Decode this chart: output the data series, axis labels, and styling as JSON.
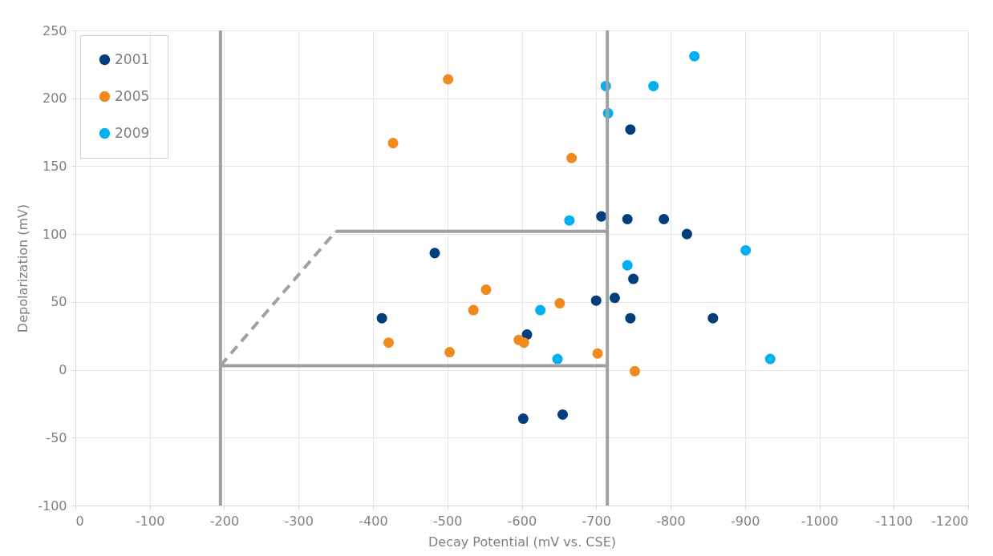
{
  "chart_data": {
    "type": "scatter",
    "xlabel": "Decay Potential (mV vs. CSE)",
    "ylabel": "Depolarization (mV)",
    "xlim": [
      0,
      -1200
    ],
    "xticks": [
      0,
      -100,
      -200,
      -300,
      -400,
      -500,
      -600,
      -700,
      -800,
      -900,
      -1000,
      -1100,
      -1200
    ],
    "ylim": [
      -100,
      250
    ],
    "yticks": [
      -100,
      -50,
      0,
      50,
      100,
      150,
      200,
      250
    ],
    "grid": true,
    "legend": "top left",
    "marker": "circle",
    "series": [
      {
        "name": "2001",
        "color": "#023e7d",
        "x": [
          -483,
          -412,
          -607,
          -746,
          -707,
          -742,
          -791,
          -822,
          -750,
          -725,
          -700,
          -746,
          -857,
          -602,
          -655
        ],
        "values": [
          86,
          38,
          26,
          177,
          113,
          111,
          111,
          100,
          67,
          53,
          51,
          38,
          38,
          -36,
          -33
        ]
      },
      {
        "name": "2005",
        "color": "#f08a1e",
        "x": [
          -501,
          -427,
          -552,
          -535,
          -421,
          -503,
          -596,
          -603,
          -667,
          -651,
          -702,
          -752
        ],
        "values": [
          214,
          167,
          59,
          44,
          20,
          13,
          22,
          20,
          156,
          49,
          12,
          -1
        ]
      },
      {
        "name": "2009",
        "color": "#00b0f0",
        "x": [
          -832,
          -713,
          -777,
          -716,
          -664,
          -901,
          -742,
          -625,
          -648,
          -934
        ],
        "values": [
          231,
          209,
          209,
          189,
          110,
          88,
          77,
          44,
          8,
          8
        ]
      },
      {
        "type": "line",
        "color": "#a0a0a0",
        "line_style": "solid",
        "marker": "none",
        "x": [
          -195,
          -715
        ],
        "values": [
          3,
          3
        ]
      },
      {
        "type": "line",
        "color": "#a0a0a0",
        "line_style": "solid",
        "marker": "none",
        "x": [
          -350,
          -715
        ],
        "values": [
          102,
          102
        ]
      },
      {
        "type": "line",
        "color": "#a0a0a0",
        "line_style": "dashed",
        "marker": "none",
        "x": [
          -195,
          -350
        ],
        "values": [
          3,
          102
        ]
      }
    ],
    "ref_lines": [
      {
        "axis": "x",
        "value": -195,
        "color": "#a0a0a0"
      },
      {
        "axis": "x",
        "value": -715,
        "color": "#a0a0a0"
      }
    ]
  }
}
